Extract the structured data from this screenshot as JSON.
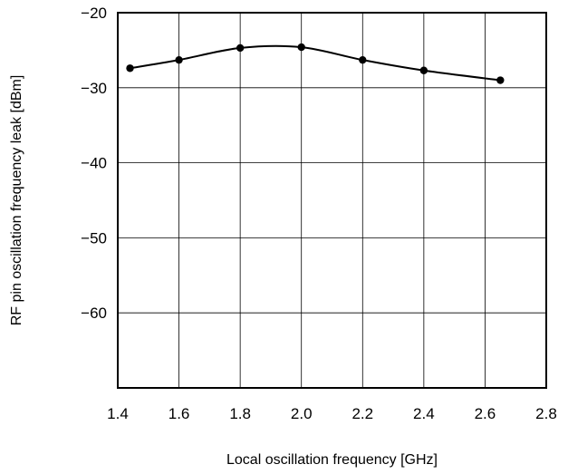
{
  "chart_data": {
    "type": "line",
    "title": "",
    "xlabel": "Local oscillation frequency [GHz]",
    "ylabel": "RF pin oscillation frequency leak [dBm]",
    "xlim": [
      1.4,
      2.8
    ],
    "ylim": [
      -70,
      -20
    ],
    "x_ticks": [
      1.4,
      1.6,
      1.8,
      2.0,
      2.2,
      2.4,
      2.6,
      2.8
    ],
    "x_tick_labels": [
      "1.4",
      "1.6",
      "1.8",
      "2.0",
      "2.2",
      "2.4",
      "2.6",
      "2.8"
    ],
    "y_ticks": [
      -20,
      -30,
      -40,
      -50,
      -60
    ],
    "y_tick_labels": [
      "−20",
      "−30",
      "−40",
      "−50",
      "−60"
    ],
    "grid": true,
    "series": [
      {
        "x": [
          1.44,
          1.6,
          1.8,
          2.0,
          2.2,
          2.4,
          2.65
        ],
        "y": [
          -27.4,
          -26.3,
          -24.7,
          -24.6,
          -26.3,
          -27.7,
          -29.0
        ],
        "color": "#000000",
        "markers": true
      }
    ]
  }
}
